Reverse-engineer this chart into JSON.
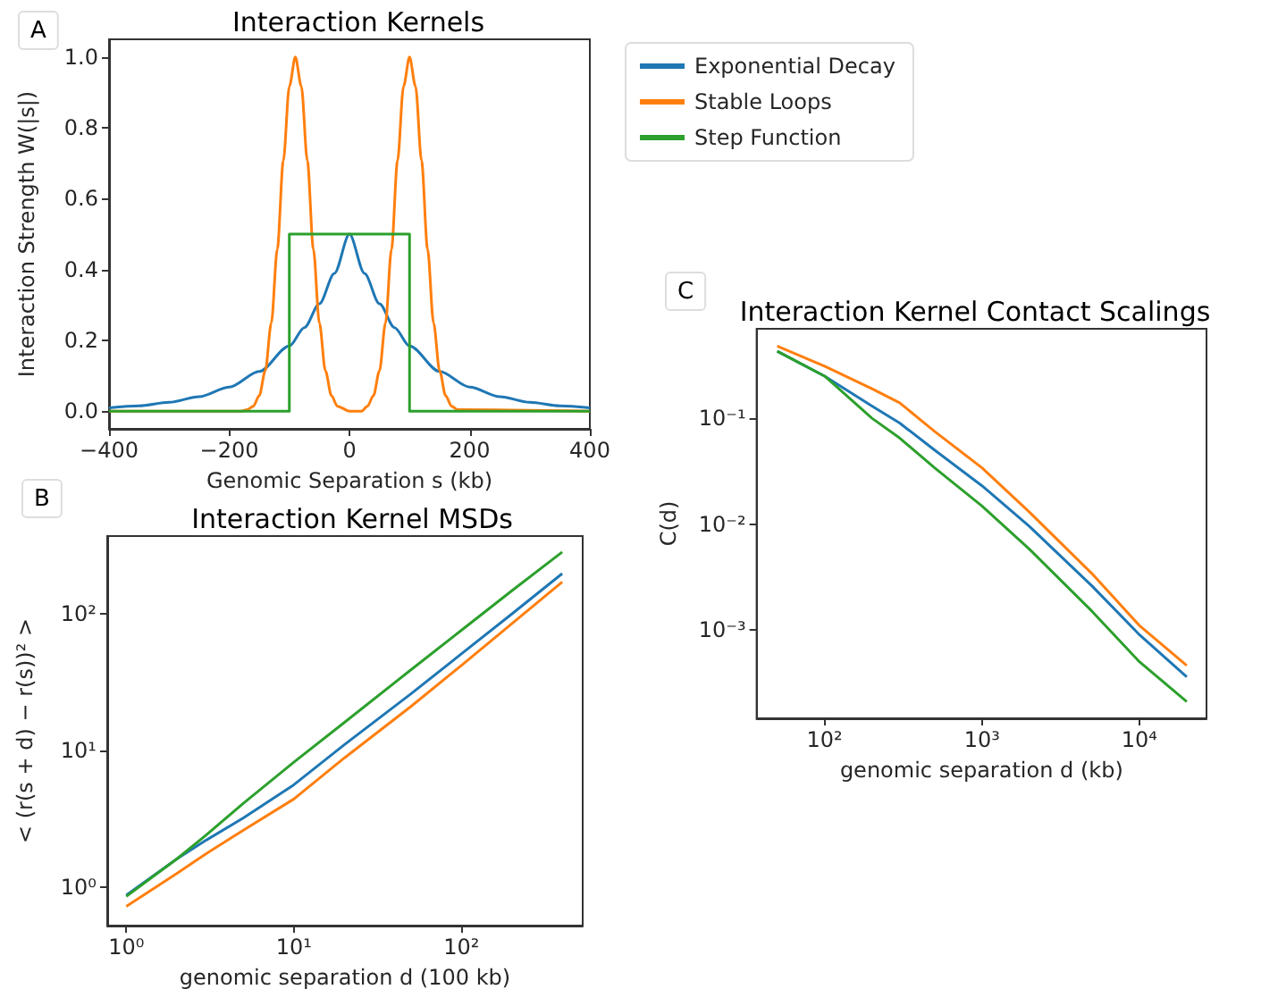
{
  "chart_data": [
    {
      "type": "line",
      "title": "Interaction Kernels",
      "xlabel": "Genomic Separation s (kb)",
      "ylabel": "Interaction Strength W(|s|)",
      "annotations": [
        "A"
      ],
      "legend": "top right",
      "grid": false,
      "xlim": [
        -400,
        400
      ],
      "xticks": [
        {
          "value": -400,
          "label": "−400"
        },
        {
          "value": -200,
          "label": "−200"
        },
        0,
        200,
        400
      ],
      "ylim": [
        -0.05,
        1.05
      ],
      "yticks": [
        {
          "value": 0,
          "label": "0.0"
        },
        {
          "value": 0.2,
          "label": "0.2"
        },
        {
          "value": 0.4,
          "label": "0.4"
        },
        {
          "value": 0.6,
          "label": "0.6"
        },
        {
          "value": 0.8,
          "label": "0.8"
        },
        {
          "value": 1,
          "label": "1.0"
        }
      ],
      "series": [
        {
          "name": "Exponential Decay",
          "color": "#1f77b4",
          "x": [
            -400,
            -350,
            -300,
            -250,
            -200,
            -150,
            -100,
            -75,
            -50,
            -25,
            0,
            25,
            50,
            75,
            100,
            150,
            200,
            250,
            300,
            350,
            400
          ],
          "values": [
            0.009,
            0.015,
            0.025,
            0.041,
            0.068,
            0.112,
            0.184,
            0.236,
            0.303,
            0.389,
            0.5,
            0.389,
            0.303,
            0.236,
            0.184,
            0.112,
            0.068,
            0.041,
            0.025,
            0.015,
            0.009
          ]
        },
        {
          "name": "Stable Loops",
          "color": "#ff7f0e",
          "x": [
            -400,
            -180,
            -170,
            -160,
            -150,
            -140,
            -130,
            -120,
            -110,
            -100,
            -90,
            -80,
            -70,
            -60,
            -50,
            -40,
            -30,
            -20,
            0,
            20,
            30,
            40,
            50,
            60,
            70,
            80,
            90,
            100,
            110,
            120,
            130,
            140,
            150,
            160,
            170,
            180,
            400
          ],
          "values": [
            0,
            0,
            0.004,
            0.014,
            0.044,
            0.114,
            0.249,
            0.458,
            0.707,
            0.917,
            1,
            0.917,
            0.707,
            0.458,
            0.249,
            0.114,
            0.044,
            0.014,
            0,
            0,
            0.014,
            0.044,
            0.114,
            0.249,
            0.458,
            0.707,
            0.917,
            1,
            0.917,
            0.707,
            0.458,
            0.249,
            0.114,
            0.044,
            0.014,
            0.004,
            0
          ]
        },
        {
          "name": "Step Function",
          "color": "#2ca02c",
          "x": [
            -400,
            -100,
            -100,
            100,
            100,
            400
          ],
          "values": [
            0,
            0,
            0.5,
            0.5,
            0,
            0
          ]
        }
      ]
    },
    {
      "type": "line",
      "title": "Interaction Kernel MSDs",
      "xlabel": "genomic separation d (100 kb)",
      "ylabel": "< (r(s + d) − r(s))² >",
      "annotations": [
        "B"
      ],
      "legend": false,
      "grid": false,
      "log": "xy",
      "xlim": [
        0.77,
        530
      ],
      "xticks": [
        {
          "value": 1,
          "label": "10⁰"
        },
        {
          "value": 10,
          "label": "10¹"
        },
        {
          "value": 100,
          "label": "10²"
        }
      ],
      "ylim": [
        0.52,
        373
      ],
      "yticks": [
        {
          "value": 1,
          "label": "10⁰"
        },
        {
          "value": 10,
          "label": "10¹"
        },
        {
          "value": 100,
          "label": "10²"
        }
      ],
      "series": [
        {
          "color": "#1f77b4",
          "x": [
            1,
            2,
            3,
            5,
            10,
            20,
            50,
            100,
            200,
            400
          ],
          "values": [
            0.87,
            1.6,
            2.2,
            3.2,
            5.6,
            11,
            26,
            51,
            100,
            198
          ]
        },
        {
          "color": "#ff7f0e",
          "x": [
            1,
            2,
            3,
            5,
            10,
            20,
            50,
            100,
            200,
            400
          ],
          "values": [
            0.72,
            1.25,
            1.75,
            2.6,
            4.4,
            8.8,
            21,
            42,
            85,
            172
          ]
        },
        {
          "color": "#2ca02c",
          "x": [
            1,
            2,
            3,
            5,
            10,
            20,
            50,
            100,
            200,
            400
          ],
          "values": [
            0.85,
            1.6,
            2.4,
            4.1,
            8.2,
            16,
            39,
            76,
            148,
            285
          ]
        }
      ]
    },
    {
      "type": "line",
      "title": "Interaction Kernel Contact Scalings",
      "xlabel": "genomic separation d (kb)",
      "ylabel": "C(d)",
      "annotations": [
        "C"
      ],
      "legend": false,
      "grid": false,
      "log": "xy",
      "xlim": [
        37,
        26700
      ],
      "xticks": [
        {
          "value": 100,
          "label": "10²"
        },
        {
          "value": 1000,
          "label": "10³"
        },
        {
          "value": 10000,
          "label": "10⁴"
        }
      ],
      "ylim": [
        0.000146,
        0.7
      ],
      "yticks": [
        {
          "value": 0.001,
          "label": "10⁻³"
        },
        {
          "value": 0.01,
          "label": "10⁻²"
        },
        {
          "value": 0.1,
          "label": "10⁻¹"
        }
      ],
      "series": [
        {
          "color": "#1f77b4",
          "x": [
            50,
            100,
            200,
            300,
            500,
            1000,
            2000,
            5000,
            10000,
            20000
          ],
          "values": [
            0.43,
            0.25,
            0.13,
            0.09,
            0.05,
            0.023,
            0.0095,
            0.0026,
            0.0009,
            0.00036
          ]
        },
        {
          "color": "#ff7f0e",
          "x": [
            50,
            100,
            200,
            300,
            500,
            1000,
            2000,
            5000,
            10000,
            20000
          ],
          "values": [
            0.48,
            0.31,
            0.19,
            0.14,
            0.075,
            0.034,
            0.013,
            0.0034,
            0.0011,
            0.00046
          ]
        },
        {
          "color": "#2ca02c",
          "x": [
            50,
            100,
            200,
            300,
            500,
            1000,
            2000,
            5000,
            10000,
            20000
          ],
          "values": [
            0.43,
            0.25,
            0.1,
            0.065,
            0.034,
            0.0148,
            0.0058,
            0.0015,
            0.0005,
            0.00021
          ]
        }
      ]
    }
  ]
}
